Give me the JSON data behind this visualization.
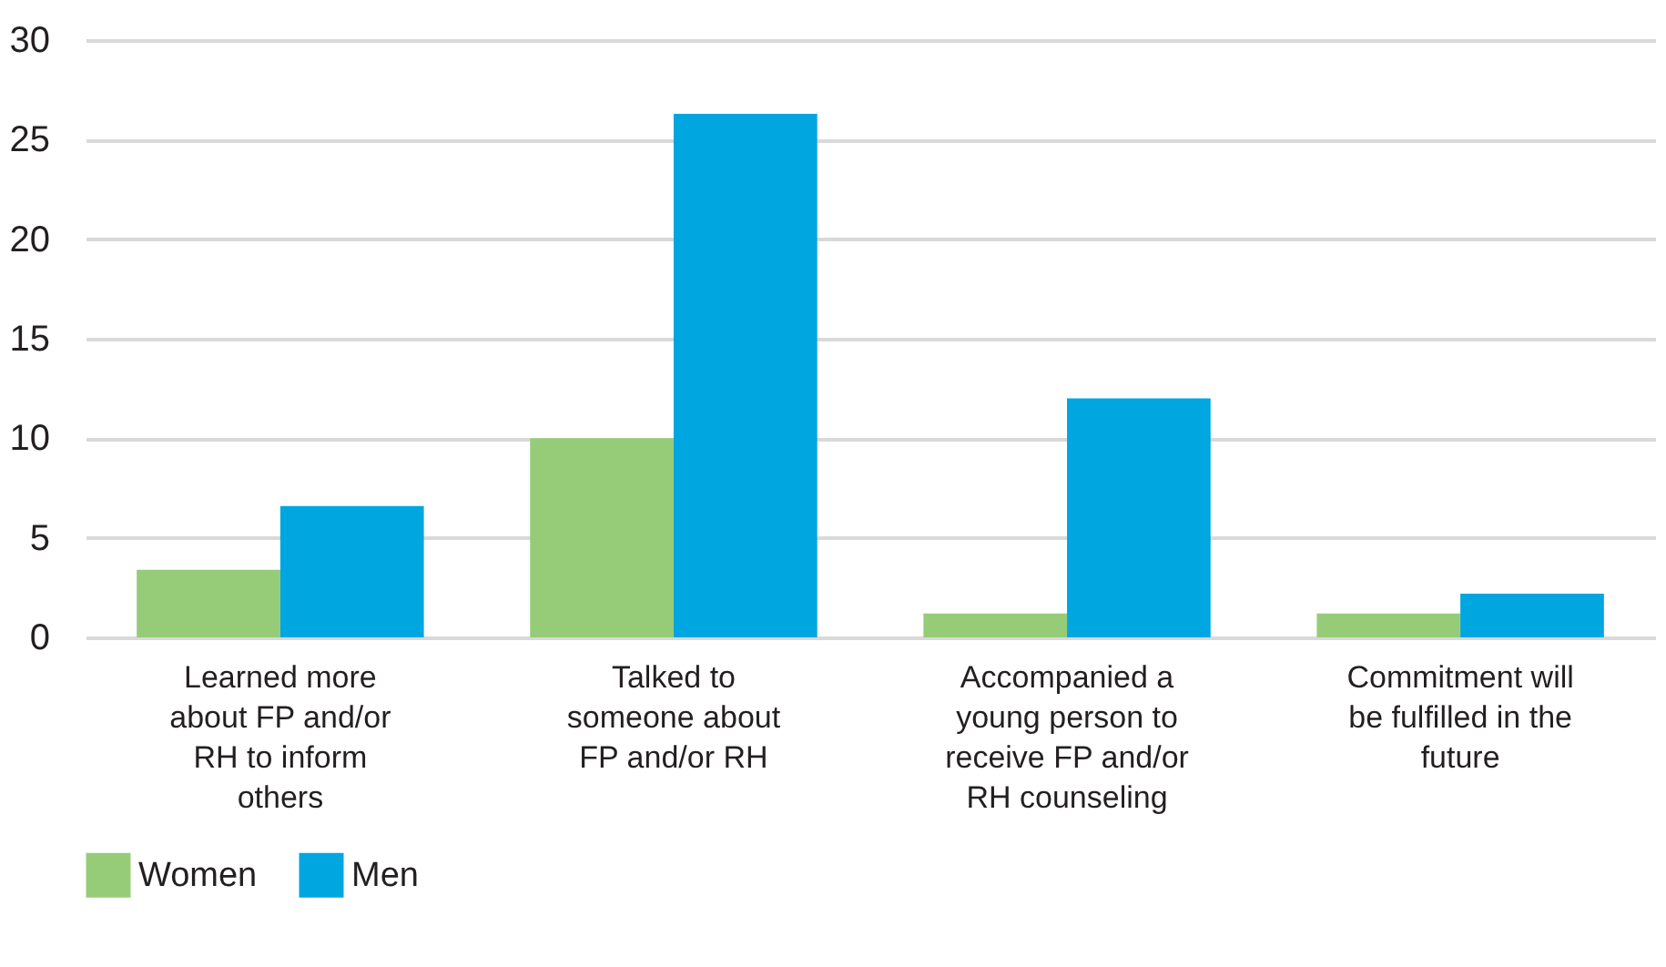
{
  "chart_data": {
    "type": "bar",
    "categories": [
      "Learned more about FP and/or RH to inform others",
      "Talked to someone about FP and/or RH",
      "Accompanied a young person to receive FP and/or RH counseling",
      "Commitment will be fulfilled in the future"
    ],
    "series": [
      {
        "name": "Women",
        "color": "#96cc78",
        "values": [
          3.4,
          10,
          1.2,
          1.2
        ]
      },
      {
        "name": "Men",
        "color": "#00a6e0",
        "values": [
          6.6,
          26.3,
          12.0,
          2.2
        ]
      }
    ],
    "ylim": [
      0,
      30
    ],
    "yticks": [
      0,
      5,
      10,
      15,
      20,
      25,
      30
    ],
    "grid": "y",
    "legend": "bottom"
  }
}
